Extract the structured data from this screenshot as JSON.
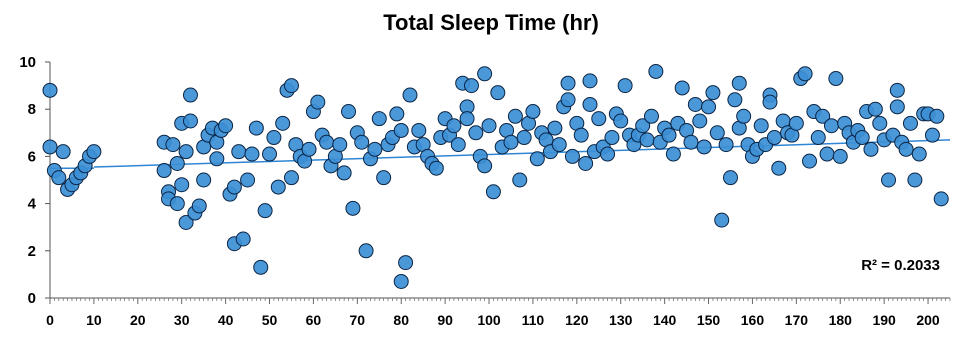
{
  "chart_data": {
    "type": "scatter",
    "title": "Total Sleep Time (hr)",
    "xlabel": "",
    "ylabel": "",
    "xlim": [
      0,
      205
    ],
    "ylim": [
      0,
      10
    ],
    "x_ticks": [
      0,
      10,
      20,
      30,
      40,
      50,
      60,
      70,
      80,
      90,
      100,
      110,
      120,
      130,
      140,
      150,
      160,
      170,
      180,
      190,
      200
    ],
    "y_ticks": [
      0,
      2,
      4,
      6,
      8,
      10
    ],
    "grid": false,
    "annotation": "R² = 0.2033",
    "colors": {
      "point_fill": "#3c8fd6",
      "point_stroke": "#0b2545",
      "trend": "#2e86d4"
    },
    "trendlines": [
      {
        "x": [
          0,
          10
        ],
        "y": [
          5.5,
          5.5
        ]
      },
      {
        "x": [
          10,
          205
        ],
        "y": [
          5.55,
          6.7
        ]
      }
    ],
    "series": [
      {
        "points": [
          [
            0,
            8.8
          ],
          [
            0,
            6.4
          ],
          [
            1,
            5.4
          ],
          [
            2,
            5.1
          ],
          [
            3,
            6.2
          ],
          [
            4,
            4.6
          ],
          [
            5,
            4.8
          ],
          [
            6,
            5.1
          ],
          [
            7,
            5.3
          ],
          [
            8,
            5.6
          ],
          [
            9,
            6.0
          ],
          [
            10,
            6.2
          ],
          [
            26,
            6.6
          ],
          [
            26,
            5.4
          ],
          [
            27,
            4.5
          ],
          [
            27,
            4.2
          ],
          [
            28,
            6.5
          ],
          [
            29,
            5.7
          ],
          [
            29,
            4.0
          ],
          [
            30,
            7.4
          ],
          [
            30,
            4.8
          ],
          [
            31,
            6.2
          ],
          [
            31,
            3.2
          ],
          [
            32,
            8.6
          ],
          [
            32,
            7.5
          ],
          [
            33,
            3.6
          ],
          [
            34,
            3.9
          ],
          [
            35,
            6.4
          ],
          [
            35,
            5.0
          ],
          [
            36,
            6.9
          ],
          [
            37,
            7.2
          ],
          [
            38,
            6.6
          ],
          [
            38,
            5.9
          ],
          [
            39,
            7.1
          ],
          [
            40,
            7.3
          ],
          [
            41,
            4.4
          ],
          [
            42,
            4.7
          ],
          [
            42,
            2.3
          ],
          [
            43,
            6.2
          ],
          [
            44,
            2.5
          ],
          [
            45,
            5.0
          ],
          [
            46,
            6.1
          ],
          [
            47,
            7.2
          ],
          [
            48,
            1.3
          ],
          [
            49,
            3.7
          ],
          [
            50,
            6.1
          ],
          [
            51,
            6.8
          ],
          [
            52,
            4.7
          ],
          [
            53,
            7.4
          ],
          [
            54,
            8.8
          ],
          [
            55,
            9.0
          ],
          [
            55,
            5.1
          ],
          [
            56,
            6.5
          ],
          [
            57,
            6.0
          ],
          [
            58,
            5.8
          ],
          [
            59,
            6.3
          ],
          [
            60,
            7.9
          ],
          [
            61,
            8.3
          ],
          [
            62,
            6.9
          ],
          [
            63,
            6.6
          ],
          [
            64,
            5.6
          ],
          [
            65,
            6.0
          ],
          [
            66,
            6.5
          ],
          [
            67,
            5.3
          ],
          [
            68,
            7.9
          ],
          [
            69,
            3.8
          ],
          [
            70,
            7.0
          ],
          [
            71,
            6.6
          ],
          [
            72,
            2.0
          ],
          [
            73,
            5.9
          ],
          [
            74,
            6.3
          ],
          [
            75,
            7.6
          ],
          [
            76,
            5.1
          ],
          [
            77,
            6.5
          ],
          [
            78,
            6.8
          ],
          [
            79,
            7.8
          ],
          [
            80,
            7.1
          ],
          [
            80,
            0.7
          ],
          [
            81,
            1.5
          ],
          [
            82,
            8.6
          ],
          [
            83,
            6.4
          ],
          [
            84,
            7.1
          ],
          [
            85,
            6.5
          ],
          [
            86,
            6.0
          ],
          [
            87,
            5.7
          ],
          [
            88,
            5.5
          ],
          [
            89,
            6.8
          ],
          [
            90,
            7.6
          ],
          [
            91,
            6.9
          ],
          [
            92,
            7.3
          ],
          [
            93,
            6.5
          ],
          [
            94,
            9.1
          ],
          [
            95,
            8.1
          ],
          [
            95,
            7.6
          ],
          [
            96,
            9.0
          ],
          [
            97,
            7.0
          ],
          [
            98,
            6.0
          ],
          [
            99,
            9.5
          ],
          [
            99,
            5.6
          ],
          [
            100,
            7.3
          ],
          [
            101,
            4.5
          ],
          [
            102,
            8.7
          ],
          [
            103,
            6.4
          ],
          [
            104,
            7.1
          ],
          [
            105,
            6.6
          ],
          [
            106,
            7.7
          ],
          [
            107,
            5.0
          ],
          [
            108,
            6.8
          ],
          [
            109,
            7.4
          ],
          [
            110,
            7.9
          ],
          [
            111,
            5.9
          ],
          [
            112,
            7.0
          ],
          [
            113,
            6.7
          ],
          [
            114,
            6.2
          ],
          [
            115,
            7.2
          ],
          [
            116,
            6.5
          ],
          [
            117,
            8.1
          ],
          [
            118,
            9.1
          ],
          [
            118,
            8.4
          ],
          [
            119,
            6.0
          ],
          [
            120,
            7.4
          ],
          [
            121,
            6.9
          ],
          [
            122,
            5.7
          ],
          [
            123,
            9.2
          ],
          [
            123,
            8.2
          ],
          [
            124,
            6.2
          ],
          [
            125,
            7.6
          ],
          [
            126,
            6.4
          ],
          [
            127,
            6.1
          ],
          [
            128,
            6.8
          ],
          [
            129,
            7.8
          ],
          [
            130,
            7.5
          ],
          [
            131,
            9.0
          ],
          [
            132,
            6.9
          ],
          [
            133,
            6.5
          ],
          [
            134,
            6.9
          ],
          [
            135,
            7.3
          ],
          [
            136,
            6.7
          ],
          [
            137,
            7.7
          ],
          [
            138,
            9.6
          ],
          [
            139,
            6.6
          ],
          [
            140,
            7.2
          ],
          [
            141,
            6.9
          ],
          [
            142,
            6.1
          ],
          [
            143,
            7.4
          ],
          [
            144,
            8.9
          ],
          [
            145,
            7.1
          ],
          [
            146,
            6.6
          ],
          [
            147,
            8.2
          ],
          [
            148,
            7.5
          ],
          [
            149,
            6.4
          ],
          [
            150,
            8.1
          ],
          [
            151,
            8.7
          ],
          [
            152,
            7.0
          ],
          [
            153,
            3.3
          ],
          [
            154,
            6.5
          ],
          [
            155,
            5.1
          ],
          [
            156,
            8.4
          ],
          [
            157,
            9.1
          ],
          [
            157,
            7.2
          ],
          [
            158,
            7.7
          ],
          [
            159,
            6.5
          ],
          [
            160,
            6.0
          ],
          [
            161,
            6.3
          ],
          [
            162,
            7.3
          ],
          [
            163,
            6.5
          ],
          [
            164,
            8.6
          ],
          [
            164,
            8.3
          ],
          [
            165,
            6.8
          ],
          [
            166,
            5.5
          ],
          [
            167,
            7.5
          ],
          [
            168,
            7.0
          ],
          [
            169,
            6.9
          ],
          [
            170,
            7.4
          ],
          [
            171,
            9.3
          ],
          [
            172,
            9.5
          ],
          [
            173,
            5.8
          ],
          [
            174,
            7.9
          ],
          [
            175,
            6.8
          ],
          [
            176,
            7.7
          ],
          [
            177,
            6.1
          ],
          [
            178,
            7.3
          ],
          [
            179,
            9.3
          ],
          [
            180,
            6.0
          ],
          [
            181,
            7.4
          ],
          [
            182,
            7.0
          ],
          [
            183,
            6.6
          ],
          [
            184,
            7.1
          ],
          [
            185,
            6.8
          ],
          [
            186,
            7.9
          ],
          [
            187,
            6.3
          ],
          [
            188,
            8.0
          ],
          [
            189,
            7.4
          ],
          [
            190,
            6.7
          ],
          [
            191,
            5.0
          ],
          [
            192,
            6.9
          ],
          [
            193,
            8.1
          ],
          [
            193,
            8.8
          ],
          [
            194,
            6.6
          ],
          [
            195,
            6.3
          ],
          [
            196,
            7.4
          ],
          [
            197,
            5.0
          ],
          [
            198,
            6.1
          ],
          [
            199,
            7.8
          ],
          [
            200,
            7.8
          ],
          [
            201,
            6.9
          ],
          [
            202,
            7.7
          ],
          [
            203,
            4.2
          ]
        ]
      }
    ]
  }
}
